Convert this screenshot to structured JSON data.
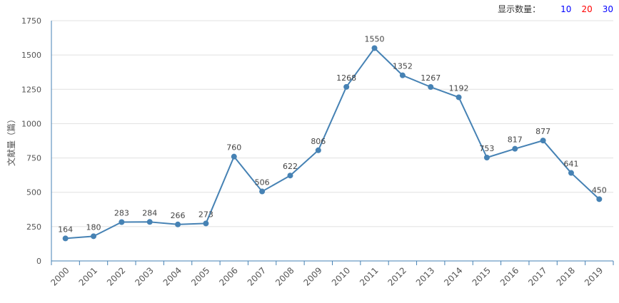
{
  "display_count": {
    "label": "显示数量：",
    "options": [
      {
        "text": "10",
        "color": "#0000ff"
      },
      {
        "text": "20",
        "color": "#ff0000"
      },
      {
        "text": "30",
        "color": "#0000ff"
      }
    ]
  },
  "chart_data": {
    "type": "line",
    "title": "",
    "xlabel": "",
    "ylabel": "文献量（篇）",
    "categories": [
      "2000",
      "2001",
      "2002",
      "2003",
      "2004",
      "2005",
      "2006",
      "2007",
      "2008",
      "2009",
      "2010",
      "2011",
      "2012",
      "2013",
      "2014",
      "2015",
      "2016",
      "2017",
      "2018",
      "2019"
    ],
    "series": [
      {
        "values": [
          164,
          180,
          283,
          284,
          266,
          273,
          760,
          506,
          622,
          806,
          1268,
          1550,
          1352,
          1267,
          1192,
          753,
          817,
          877,
          641,
          450
        ]
      }
    ],
    "ylim": [
      0,
      1750
    ],
    "yticks": [
      0,
      250,
      500,
      750,
      1000,
      1250,
      1500,
      1750
    ],
    "grid": true,
    "legend": "none",
    "colors": {
      "line": "#4682b4",
      "axis": "#4682b4",
      "grid": "#e0e0e0",
      "text": "#555555"
    }
  }
}
